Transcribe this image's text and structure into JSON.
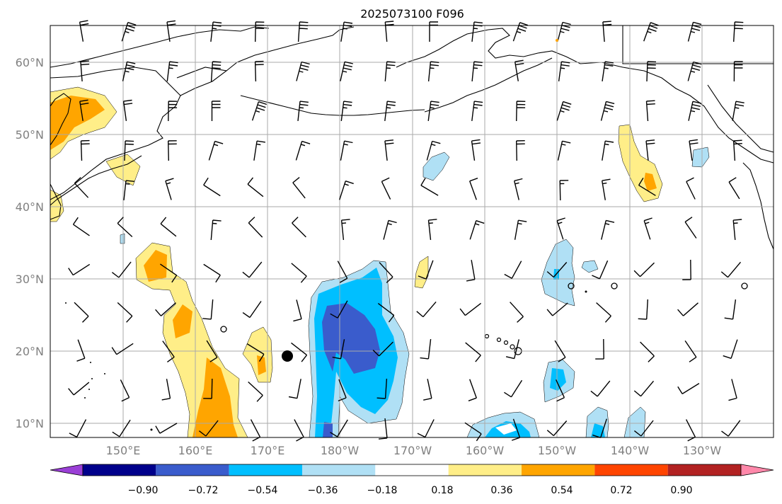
{
  "title": "2025073100 F096",
  "map": {
    "lat_labels": [
      "60°N",
      "50°N",
      "40°N",
      "30°N",
      "20°N",
      "10°N"
    ],
    "lon_labels": [
      "150°E",
      "160°E",
      "170°E",
      "180°W",
      "170°W",
      "160°W",
      "150°W",
      "140°W",
      "130°W"
    ]
  },
  "colorbar": {
    "tick_labels": [
      "−0.90",
      "−0.72",
      "−0.54",
      "−0.36",
      "−0.18",
      "0.18",
      "0.36",
      "0.54",
      "0.72",
      "0.90"
    ],
    "colors": {
      "under": "#9a3fd6",
      "bins": [
        "#00008b",
        "#3a5ccc",
        "#00bfff",
        "#b0e0f5",
        "#ffffff",
        "#ffee88",
        "#ffa500",
        "#ff4500",
        "#b22222"
      ],
      "over": "#ff88aa"
    }
  },
  "colors": {
    "light_yellow": "#ffee88",
    "orange": "#ffa500",
    "light_blue": "#b0e0f5",
    "deep_sky_blue": "#00bfff",
    "royal_blue": "#3a5ccc"
  }
}
